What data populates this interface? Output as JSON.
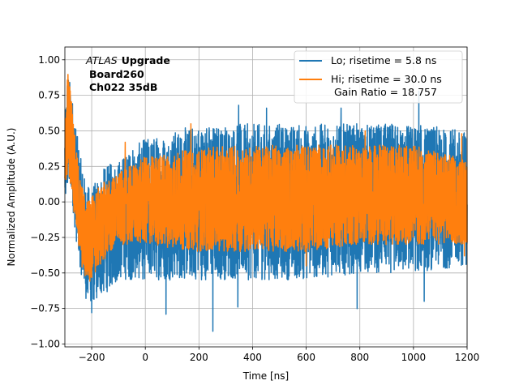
{
  "chart_data": {
    "type": "line",
    "xlabel": "Time [ns]",
    "ylabel": "Normalized Amplitude (A.U.)",
    "xlim": [
      -300,
      1200
    ],
    "ylim": [
      -1.02,
      1.09
    ],
    "xticks": [
      -200,
      0,
      200,
      400,
      600,
      800,
      1000,
      1200
    ],
    "xtick_labels": [
      "−200",
      "0",
      "200",
      "400",
      "600",
      "800",
      "1000",
      "1200"
    ],
    "yticks": [
      -1.0,
      -0.75,
      -0.5,
      -0.25,
      0.0,
      0.25,
      0.5,
      0.75,
      1.0
    ],
    "ytick_labels": [
      "−1.00",
      "−0.75",
      "−0.50",
      "−0.25",
      "0.00",
      "0.25",
      "0.50",
      "0.75",
      "1.00"
    ],
    "grid": true,
    "legend_position": "top-right",
    "annotation": {
      "italic": "ATLAS",
      "bold": "Upgrade",
      "line2": "Board260",
      "line3": "Ch022 35dB"
    },
    "series": [
      {
        "name": "Lo; risetime = 5.8 ns",
        "color": "#1f77b4",
        "envelope": [
          {
            "x": -300,
            "lo": -0.1,
            "hi": 0.6
          },
          {
            "x": -290,
            "lo": 0.05,
            "hi": 0.95
          },
          {
            "x": -275,
            "lo": 0.05,
            "hi": 0.78
          },
          {
            "x": -260,
            "lo": -0.25,
            "hi": 0.55
          },
          {
            "x": -240,
            "lo": -0.5,
            "hi": 0.3
          },
          {
            "x": -220,
            "lo": -0.7,
            "hi": 0.12
          },
          {
            "x": -200,
            "lo": -0.72,
            "hi": 0.1
          },
          {
            "x": -150,
            "lo": -0.65,
            "hi": 0.25
          },
          {
            "x": -100,
            "lo": -0.55,
            "hi": 0.3
          },
          {
            "x": 0,
            "lo": -0.55,
            "hi": 0.45
          },
          {
            "x": 200,
            "lo": -0.55,
            "hi": 0.55
          },
          {
            "x": 400,
            "lo": -0.55,
            "hi": 0.55
          },
          {
            "x": 600,
            "lo": -0.55,
            "hi": 0.55
          },
          {
            "x": 800,
            "lo": -0.5,
            "hi": 0.55
          },
          {
            "x": 1000,
            "lo": -0.5,
            "hi": 0.55
          },
          {
            "x": 1200,
            "lo": -0.45,
            "hi": 0.5
          }
        ],
        "spikes": [
          {
            "x": 252,
            "y": -0.91
          },
          {
            "x": 77,
            "y": -0.79
          },
          {
            "x": 790,
            "y": -0.75
          },
          {
            "x": -200,
            "y": -0.78
          },
          {
            "x": 1020,
            "y": 0.78
          },
          {
            "x": 730,
            "y": 0.66
          },
          {
            "x": 348,
            "y": 0.68
          },
          {
            "x": 452,
            "y": 0.66
          },
          {
            "x": 345,
            "y": -0.74
          },
          {
            "x": 1040,
            "y": -0.7
          }
        ]
      },
      {
        "name": "Hi; risetime = 30.0 ns\n Gain Ratio = 18.757",
        "color": "#ff7f0e",
        "envelope": [
          {
            "x": -300,
            "lo": 0.05,
            "hi": 0.55
          },
          {
            "x": -290,
            "lo": 0.2,
            "hi": 0.95
          },
          {
            "x": -275,
            "lo": 0.1,
            "hi": 0.75
          },
          {
            "x": -260,
            "lo": -0.2,
            "hi": 0.4
          },
          {
            "x": -240,
            "lo": -0.45,
            "hi": 0.15
          },
          {
            "x": -220,
            "lo": -0.58,
            "hi": 0.02
          },
          {
            "x": -200,
            "lo": -0.55,
            "hi": 0.05
          },
          {
            "x": -150,
            "lo": -0.4,
            "hi": 0.15
          },
          {
            "x": -100,
            "lo": -0.3,
            "hi": 0.2
          },
          {
            "x": 0,
            "lo": -0.3,
            "hi": 0.32
          },
          {
            "x": 200,
            "lo": -0.35,
            "hi": 0.38
          },
          {
            "x": 400,
            "lo": -0.35,
            "hi": 0.4
          },
          {
            "x": 600,
            "lo": -0.35,
            "hi": 0.4
          },
          {
            "x": 800,
            "lo": -0.3,
            "hi": 0.4
          },
          {
            "x": 1000,
            "lo": -0.3,
            "hi": 0.4
          },
          {
            "x": 1200,
            "lo": -0.3,
            "hi": 0.3
          }
        ],
        "spikes": [
          {
            "x": 170,
            "y": 0.55
          },
          {
            "x": 820,
            "y": 0.5
          },
          {
            "x": 1180,
            "y": 0.48
          },
          {
            "x": -75,
            "y": 0.42
          },
          {
            "x": 600,
            "y": -0.45
          },
          {
            "x": 1190,
            "y": -0.38
          }
        ]
      }
    ]
  }
}
